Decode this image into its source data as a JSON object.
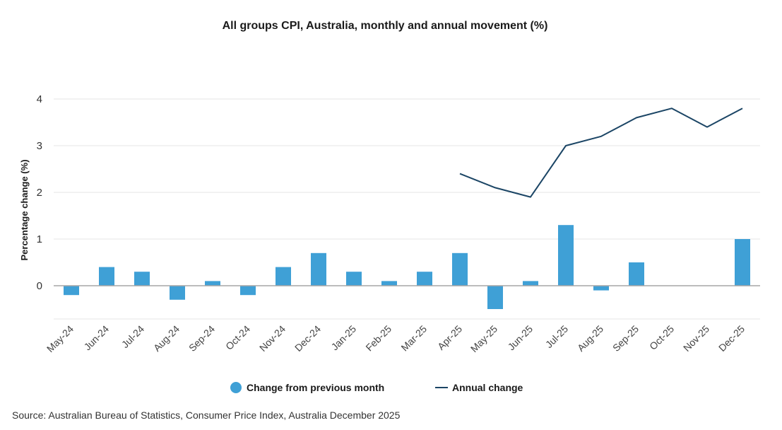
{
  "chart_data": {
    "type": "bar",
    "title": "All groups CPI, Australia, monthly and annual movement (%)",
    "xlabel": "",
    "ylabel": "Percentage change (%)",
    "ylim": [
      -0.7,
      4.2
    ],
    "yticks": [
      0,
      1,
      2,
      3,
      4
    ],
    "categories": [
      "May-24",
      "Jun-24",
      "Jul-24",
      "Aug-24",
      "Sep-24",
      "Oct-24",
      "Nov-24",
      "Dec-24",
      "Jan-25",
      "Feb-25",
      "Mar-25",
      "Apr-25",
      "May-25",
      "Jun-25",
      "Jul-25",
      "Aug-25",
      "Sep-25",
      "Oct-25",
      "Nov-25",
      "Dec-25"
    ],
    "series": [
      {
        "name": "Change from previous month",
        "type": "bar",
        "color": "#3fa0d6",
        "values": [
          -0.2,
          0.4,
          0.3,
          -0.3,
          0.1,
          -0.2,
          0.4,
          0.7,
          0.3,
          0.1,
          0.3,
          0.7,
          -0.5,
          0.1,
          1.3,
          -0.1,
          0.5,
          0.0,
          0.0,
          1.0
        ]
      },
      {
        "name": "Annual change",
        "type": "line",
        "color": "#1b4565",
        "values": [
          null,
          null,
          null,
          null,
          null,
          null,
          null,
          null,
          null,
          null,
          null,
          2.4,
          2.1,
          1.9,
          3.0,
          3.2,
          3.6,
          3.8,
          3.4,
          3.8
        ]
      }
    ],
    "legend_position": "bottom-center",
    "grid": true
  },
  "source": "Source: Australian Bureau of Statistics, Consumer Price Index, Australia December 2025"
}
